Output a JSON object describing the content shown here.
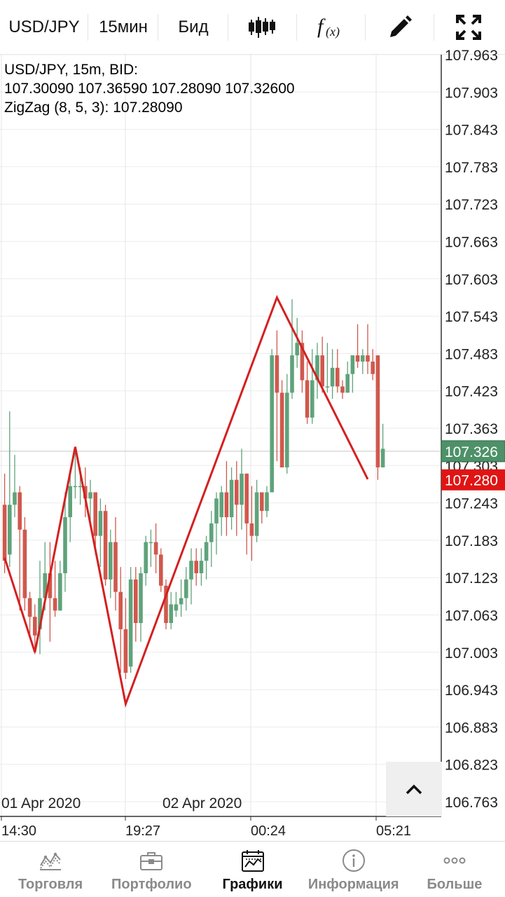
{
  "toolbar": {
    "symbol": "USD/JPY",
    "period": "15мин",
    "price_type": "Бид",
    "icons": [
      "candlestick-icon",
      "function-icon",
      "pencil-icon",
      "fullscreen-icon"
    ]
  },
  "info": {
    "line1": "USD/JPY, 15m, BID:",
    "line2": "107.30090 107.36590 107.28090 107.32600",
    "line3": "ZigZag (8, 5, 3): 107.28090"
  },
  "chart_data": {
    "type": "candlestick",
    "price_axis_labels": [
      "107.963",
      "107.903",
      "107.843",
      "107.783",
      "107.723",
      "107.663",
      "107.603",
      "107.543",
      "107.483",
      "107.423",
      "107.363",
      "107.303",
      "107.243",
      "107.183",
      "107.123",
      "107.063",
      "107.003",
      "106.943",
      "106.883",
      "106.823",
      "106.763"
    ],
    "current_bid_label": "107.326",
    "current_low_label": "107.280",
    "time_labels": [
      "14:30",
      "19:27",
      "00:24",
      "05:21"
    ],
    "date_labels": [
      "01 Apr 2020",
      "02 Apr 2020"
    ],
    "ylim": [
      106.763,
      107.963
    ],
    "zigzag": [
      {
        "bar": 0,
        "price": 107.155
      },
      {
        "bar": 6,
        "price": 107.003
      },
      {
        "bar": 14,
        "price": 107.333
      },
      {
        "bar": 24,
        "price": 106.92
      },
      {
        "bar": 54,
        "price": 107.573
      },
      {
        "bar": 72,
        "price": 107.281
      }
    ],
    "candles": [
      [
        107.24,
        107.15,
        107.29,
        107.13
      ],
      [
        107.16,
        107.24,
        107.39,
        107.14
      ],
      [
        107.24,
        107.26,
        107.32,
        107.22
      ],
      [
        107.26,
        107.2,
        107.27,
        107.07
      ],
      [
        107.2,
        107.09,
        107.22,
        107.07
      ],
      [
        107.09,
        107.06,
        107.1,
        107.03
      ],
      [
        107.06,
        107.03,
        107.08,
        107.0
      ],
      [
        107.04,
        107.09,
        107.15,
        107.0
      ],
      [
        107.09,
        107.13,
        107.18,
        107.07
      ],
      [
        107.13,
        107.09,
        107.18,
        107.02
      ],
      [
        107.09,
        107.07,
        107.15,
        107.06
      ],
      [
        107.07,
        107.13,
        107.15,
        107.07
      ],
      [
        107.13,
        107.22,
        107.26,
        107.1
      ],
      [
        107.22,
        107.27,
        107.29,
        107.18
      ],
      [
        107.27,
        107.27,
        107.33,
        107.25
      ],
      [
        107.27,
        107.27,
        107.3,
        107.24
      ],
      [
        107.27,
        107.25,
        107.3,
        107.22
      ],
      [
        107.25,
        107.26,
        107.28,
        107.21
      ],
      [
        107.26,
        107.19,
        107.26,
        107.16
      ],
      [
        107.19,
        107.23,
        107.25,
        107.14
      ],
      [
        107.23,
        107.12,
        107.24,
        107.11
      ],
      [
        107.12,
        107.18,
        107.2,
        107.09
      ],
      [
        107.18,
        107.1,
        107.22,
        107.07
      ],
      [
        107.1,
        107.04,
        107.14,
        106.97
      ],
      [
        107.04,
        106.97,
        107.09,
        106.96
      ],
      [
        106.98,
        107.12,
        107.14,
        106.97
      ],
      [
        107.12,
        107.05,
        107.14,
        107.02
      ],
      [
        107.05,
        107.13,
        107.14,
        107.02
      ],
      [
        107.13,
        107.18,
        107.19,
        107.11
      ],
      [
        107.18,
        107.18,
        107.2,
        107.14
      ],
      [
        107.18,
        107.16,
        107.21,
        107.13
      ],
      [
        107.16,
        107.11,
        107.17,
        107.1
      ],
      [
        107.11,
        107.05,
        107.12,
        107.04
      ],
      [
        107.05,
        107.08,
        107.1,
        107.04
      ],
      [
        107.07,
        107.08,
        107.1,
        107.06
      ],
      [
        107.08,
        107.09,
        107.12,
        107.06
      ],
      [
        107.09,
        107.12,
        107.14,
        107.07
      ],
      [
        107.12,
        107.15,
        107.17,
        107.08
      ],
      [
        107.15,
        107.13,
        107.17,
        107.11
      ],
      [
        107.13,
        107.15,
        107.17,
        107.11
      ],
      [
        107.15,
        107.18,
        107.19,
        107.12
      ],
      [
        107.18,
        107.21,
        107.23,
        107.14
      ],
      [
        107.21,
        107.25,
        107.26,
        107.16
      ],
      [
        107.22,
        107.26,
        107.27,
        107.19
      ],
      [
        107.26,
        107.22,
        107.31,
        107.19
      ],
      [
        107.22,
        107.28,
        107.3,
        107.2
      ],
      [
        107.28,
        107.24,
        107.31,
        107.19
      ],
      [
        107.24,
        107.29,
        107.33,
        107.2
      ],
      [
        107.29,
        107.21,
        107.29,
        107.16
      ],
      [
        107.21,
        107.19,
        107.27,
        107.15
      ],
      [
        107.19,
        107.26,
        107.28,
        107.18
      ],
      [
        107.26,
        107.23,
        107.26,
        107.21
      ],
      [
        107.23,
        107.26,
        107.27,
        107.22
      ],
      [
        107.26,
        107.48,
        107.49,
        107.26
      ],
      [
        107.48,
        107.42,
        107.52,
        107.31
      ],
      [
        107.42,
        107.3,
        107.44,
        107.3
      ],
      [
        107.3,
        107.42,
        107.45,
        107.29
      ],
      [
        107.42,
        107.48,
        107.57,
        107.41
      ],
      [
        107.48,
        107.5,
        107.54,
        107.46
      ],
      [
        107.5,
        107.44,
        107.52,
        107.42
      ],
      [
        107.44,
        107.38,
        107.47,
        107.37
      ],
      [
        107.38,
        107.44,
        107.49,
        107.37
      ],
      [
        107.44,
        107.48,
        107.5,
        107.41
      ],
      [
        107.48,
        107.43,
        107.51,
        107.42
      ],
      [
        107.43,
        107.43,
        107.5,
        107.42
      ],
      [
        107.43,
        107.46,
        107.49,
        107.41
      ],
      [
        107.46,
        107.43,
        107.49,
        107.42
      ],
      [
        107.43,
        107.42,
        107.44,
        107.41
      ],
      [
        107.42,
        107.45,
        107.47,
        107.42
      ],
      [
        107.45,
        107.48,
        107.48,
        107.42
      ],
      [
        107.48,
        107.47,
        107.53,
        107.46
      ],
      [
        107.47,
        107.48,
        107.49,
        107.45
      ],
      [
        107.48,
        107.47,
        107.53,
        107.45
      ],
      [
        107.47,
        107.45,
        107.49,
        107.44
      ],
      [
        107.48,
        107.3,
        107.48,
        107.28
      ],
      [
        107.3,
        107.33,
        107.37,
        107.3
      ]
    ]
  },
  "scroll_button": {
    "icon": "chevron-up-icon"
  },
  "bottom_nav": {
    "items": [
      {
        "label": "Торговля",
        "icon": "trading-icon"
      },
      {
        "label": "Портфолио",
        "icon": "briefcase-icon"
      },
      {
        "label": "Графики",
        "icon": "chart-calendar-icon"
      },
      {
        "label": "Информация",
        "icon": "info-icon"
      },
      {
        "label": "Больше",
        "icon": "more-icon"
      }
    ],
    "active_index": 2
  },
  "colors": {
    "bull": "#5fa37b",
    "bear": "#d0584d",
    "zigzag": "#d42020",
    "bid_label_bg": "#4e9169",
    "low_label_bg": "#e01414"
  }
}
